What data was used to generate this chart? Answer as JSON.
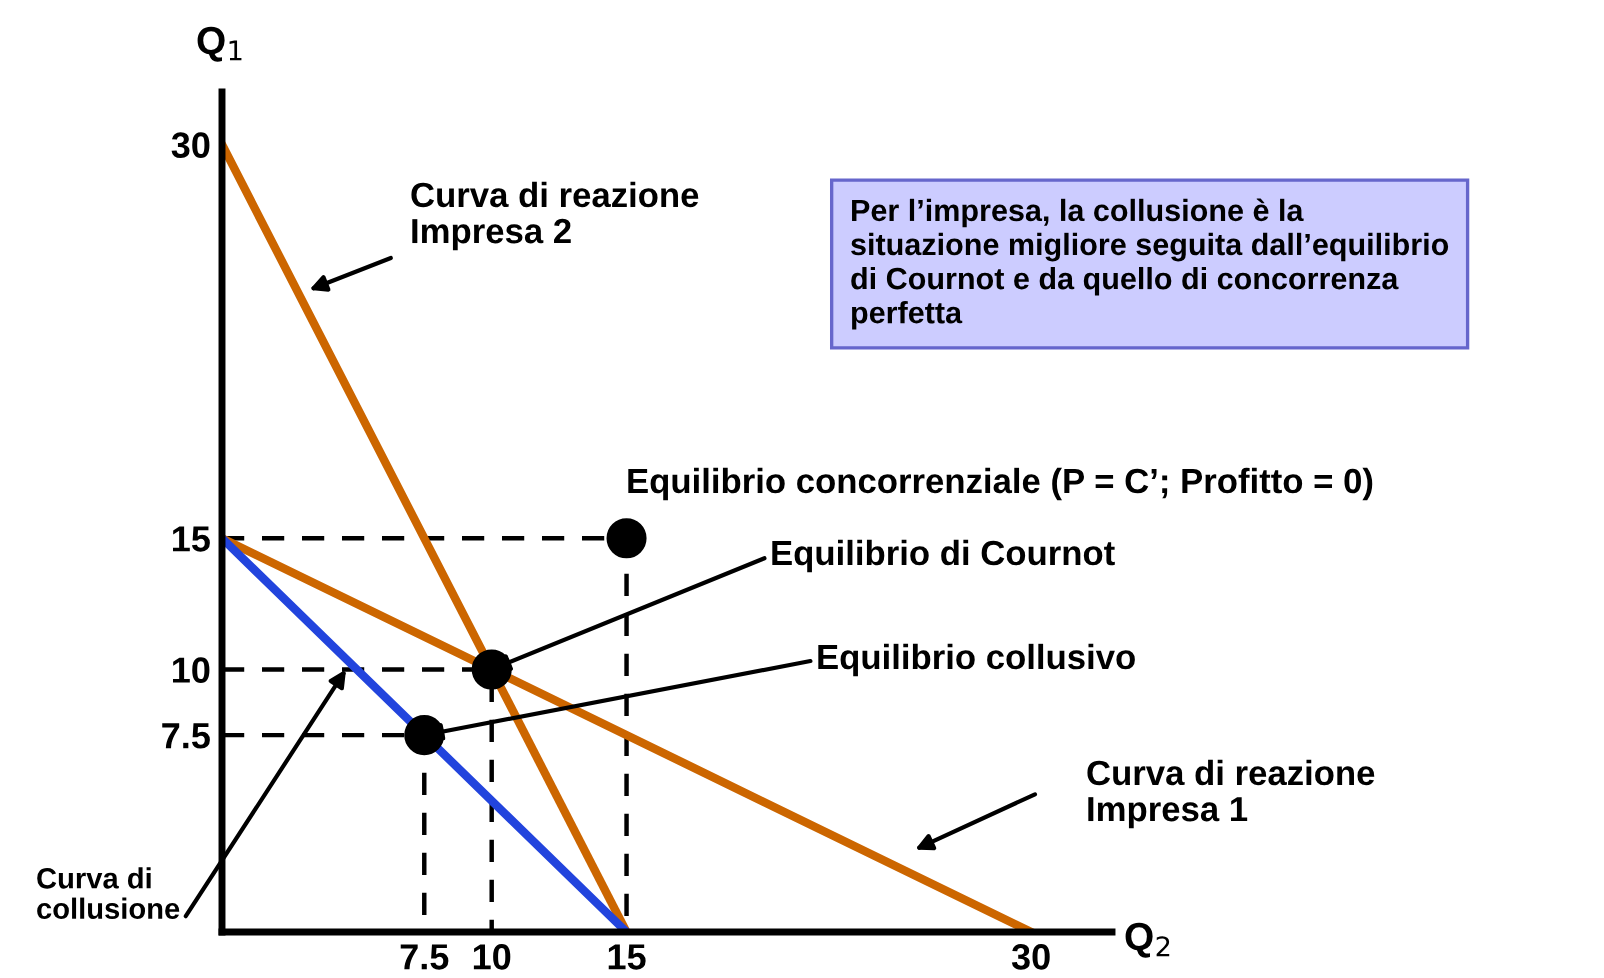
{
  "chart_data": {
    "type": "line",
    "xlabel": "Q$_{2}$",
    "ylabel": "Q$_{1}$",
    "xlim": [
      0,
      33
    ],
    "ylim": [
      0,
      32
    ],
    "xticks": [
      7.5,
      10,
      15,
      30
    ],
    "yticks": [
      7.5,
      10,
      15,
      30
    ],
    "grid": false,
    "series": [
      {
        "color": "#000000",
        "line_style": "dashed",
        "x": [
          0,
          15,
          15
        ],
        "values": [
          15,
          15,
          0
        ]
      },
      {
        "color": "#000000",
        "line_style": "dashed",
        "x": [
          0,
          10,
          10
        ],
        "values": [
          10,
          10,
          0
        ]
      },
      {
        "color": "#000000",
        "line_style": "dashed",
        "x": [
          0,
          7.5,
          7.5
        ],
        "values": [
          7.5,
          7.5,
          0
        ]
      },
      {
        "color": "#cc6600",
        "line_style": "solid",
        "x": [
          0,
          15
        ],
        "values": [
          30,
          0
        ]
      },
      {
        "color": "#cc6600",
        "line_style": "solid",
        "x": [
          0,
          30
        ],
        "values": [
          15,
          0
        ]
      },
      {
        "color": "#2244dd",
        "line_style": "solid",
        "x": [
          0,
          15
        ],
        "values": [
          15,
          0
        ]
      },
      {
        "type": "scatter",
        "color": "#000000",
        "marker": "circle",
        "x": [
          15,
          10,
          7.5
        ],
        "values": [
          15,
          10,
          7.5
        ]
      }
    ],
    "annotations": [
      "Curva di reazione\nImpresa 2",
      "Per l’impresa, la collusione è la\nsituazione migliore seguita dall’equilibrio\ndi Cournot e da quello di concorrenza\nperfetta",
      "Equilibrio concorrenziale (P = C’; Profitto = 0)",
      {
        "text": "Equilibrio di Cournot",
        "x": 10,
        "y": 10
      },
      {
        "text": "Equilibrio collusivo",
        "x": 7.5,
        "y": 7.5
      },
      "Curva di reazione\nImpresa 1",
      {
        "text": "Curva di\ncollusione",
        "x": 4.6,
        "y": 10
      }
    ]
  }
}
